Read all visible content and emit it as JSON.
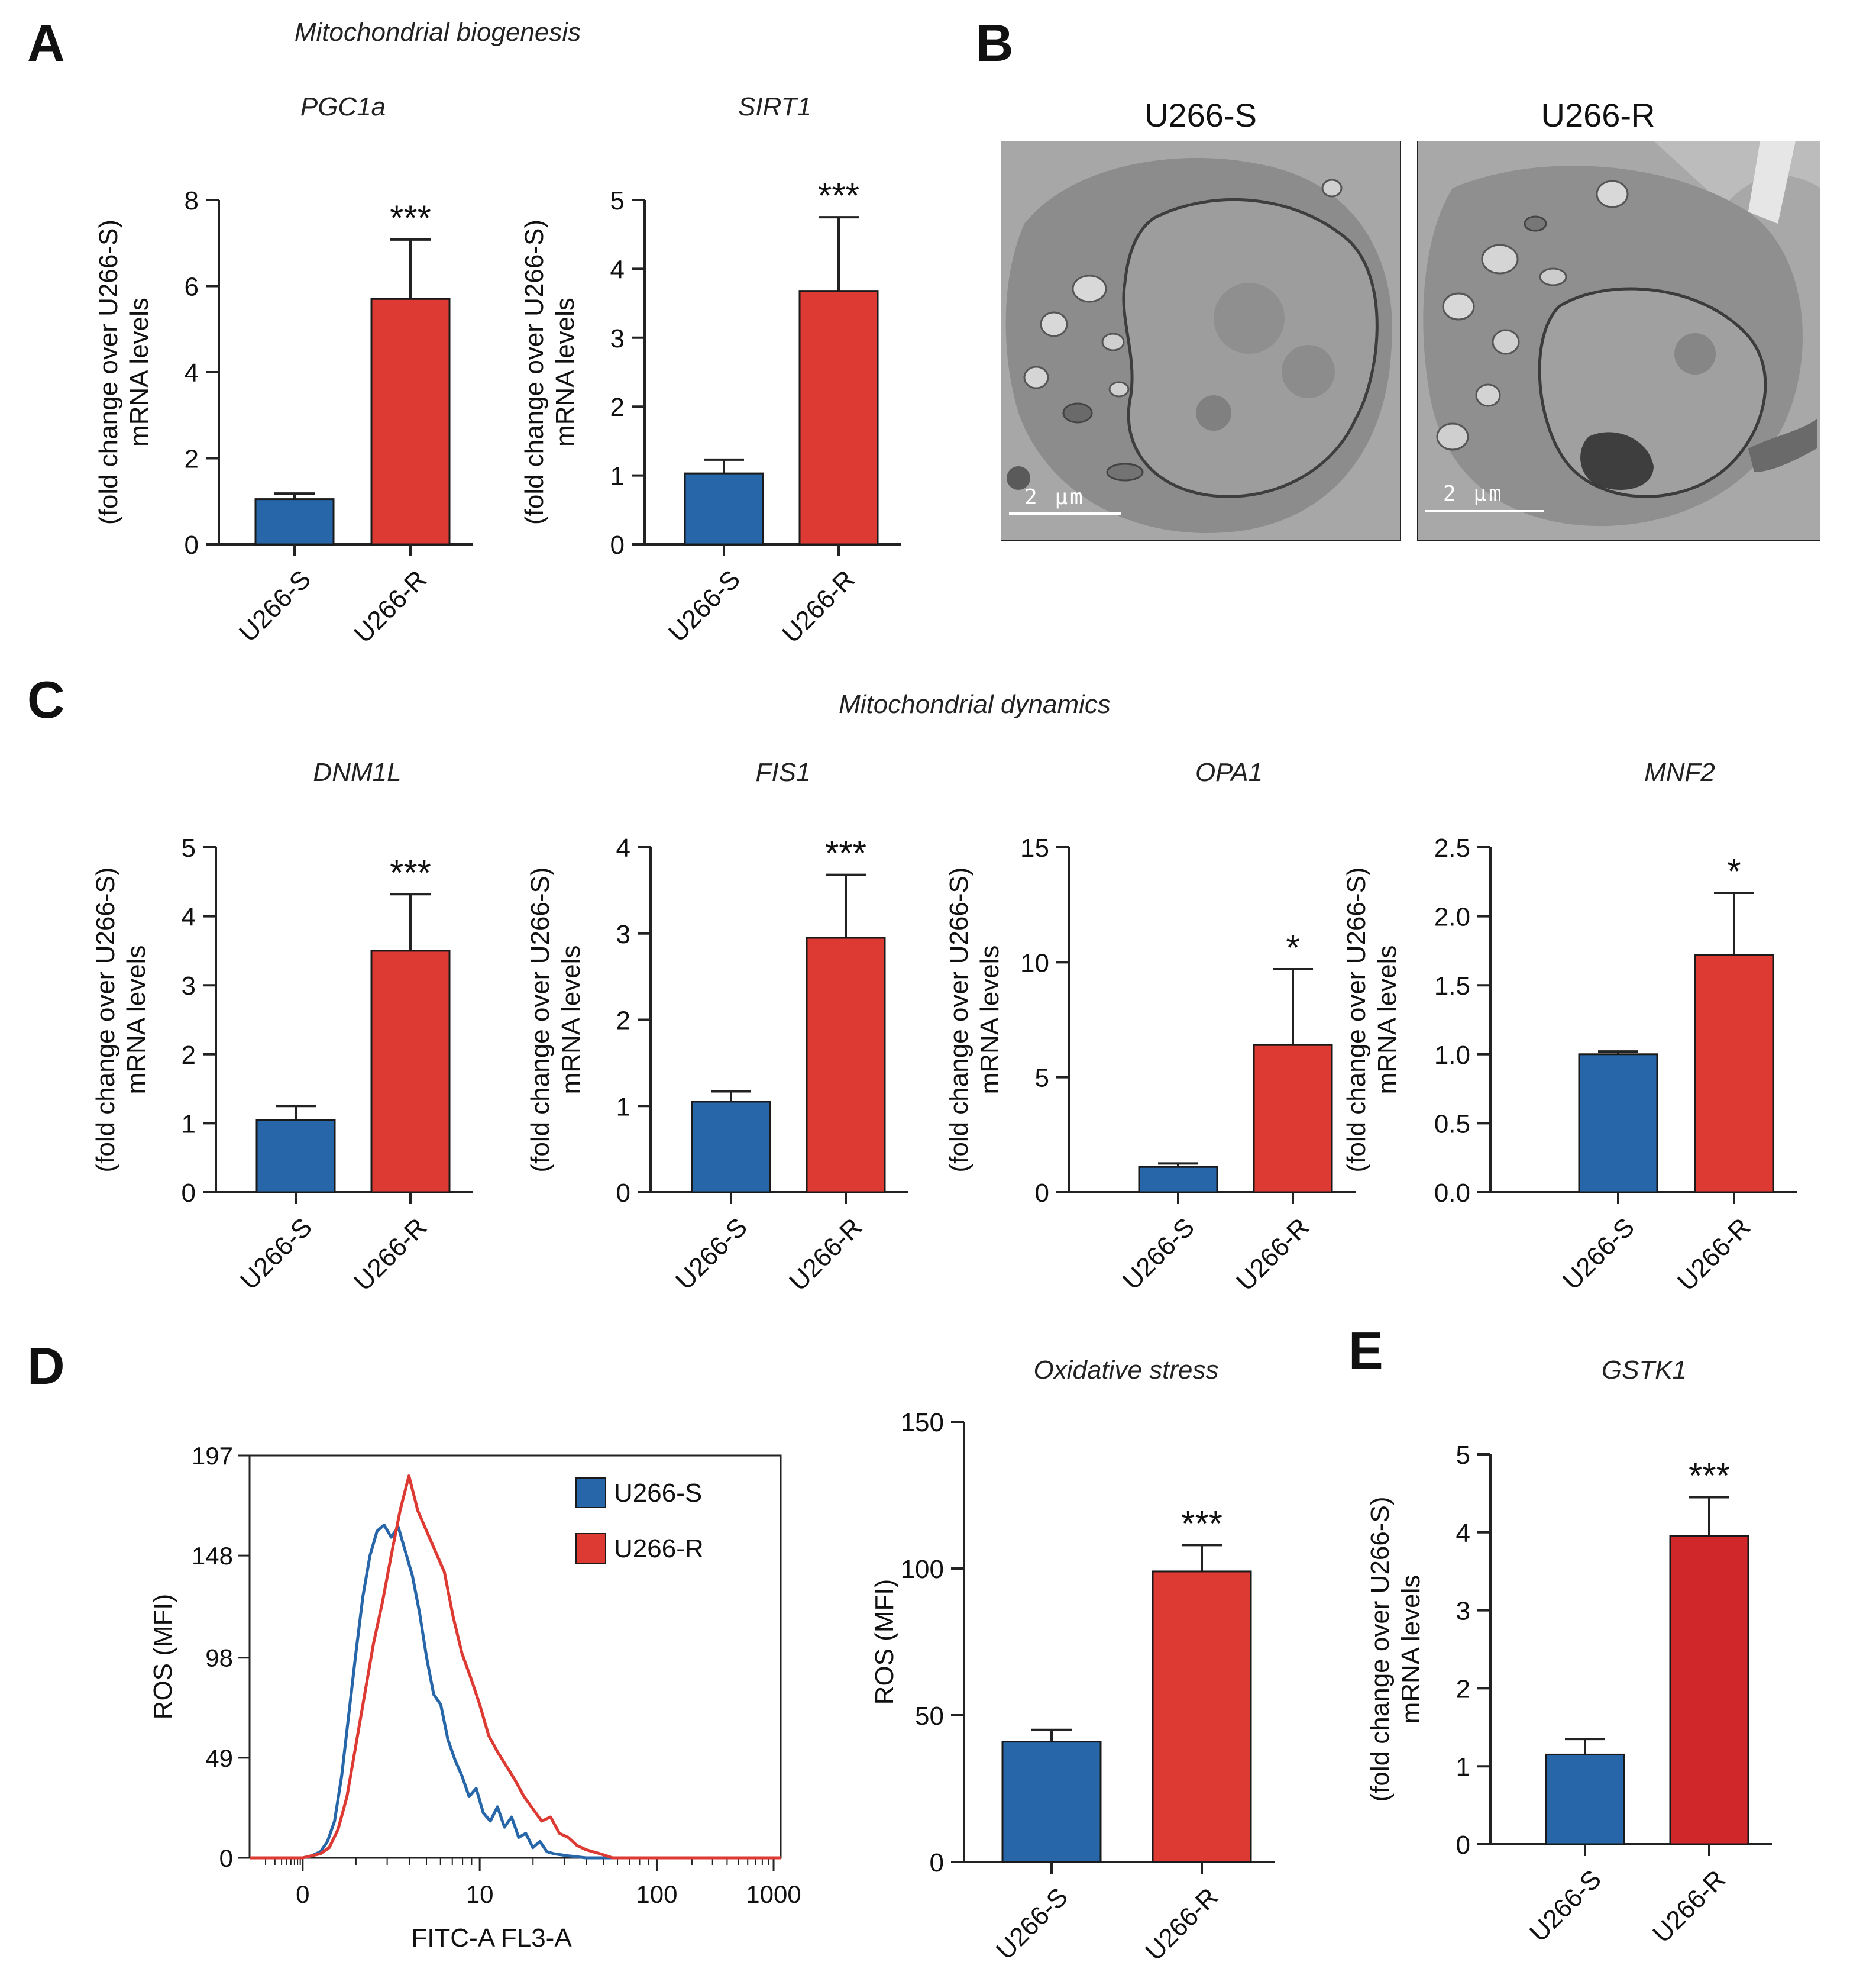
{
  "panels": {
    "A": {
      "letter": "A",
      "title": "Mitochondrial biogenesis"
    },
    "B": {
      "letter": "B",
      "images": [
        {
          "label": "U266-S",
          "scale": "2  µm"
        },
        {
          "label": "U266-R",
          "scale": "2  µm"
        }
      ]
    },
    "C": {
      "letter": "C",
      "title": "Mitochondrial dynamics"
    },
    "D": {
      "letter": "D"
    },
    "E": {
      "letter": "E"
    }
  },
  "colors": {
    "s": "#2766a8",
    "r": "#dd3a33",
    "r_dark": "#d0272a",
    "axis": "#222222"
  },
  "chart_data": [
    {
      "id": "pgc1a",
      "type": "bar",
      "title": "PGC1a",
      "ylabel": [
        "mRNA levels",
        "(fold change over U266-S)"
      ],
      "categories": [
        "U266-S",
        "U266-R"
      ],
      "values": [
        1.05,
        5.7
      ],
      "errors": [
        0.13,
        1.38
      ],
      "ylim": [
        0,
        8
      ],
      "yticks": [
        "0",
        "2",
        "4",
        "6",
        "8"
      ],
      "yticks_num": [
        0,
        2,
        4,
        6,
        8
      ],
      "significance": "***"
    },
    {
      "id": "sirt1",
      "type": "bar",
      "title": "SIRT1",
      "ylabel": [
        "mRNA levels",
        "(fold change over U266-S)"
      ],
      "categories": [
        "U266-S",
        "U266-R"
      ],
      "values": [
        1.03,
        3.68
      ],
      "errors": [
        0.2,
        1.07
      ],
      "ylim": [
        0,
        5
      ],
      "yticks": [
        "0",
        "1",
        "2",
        "3",
        "4",
        "5"
      ],
      "yticks_num": [
        0,
        1,
        2,
        3,
        4,
        5
      ],
      "significance": "***"
    },
    {
      "id": "dnm1l",
      "type": "bar",
      "title": "DNM1L",
      "ylabel": [
        "mRNA levels",
        "(fold change over U266-S)"
      ],
      "categories": [
        "U266-S",
        "U266-R"
      ],
      "values": [
        1.05,
        3.5
      ],
      "errors": [
        0.2,
        0.82
      ],
      "ylim": [
        0,
        5
      ],
      "yticks": [
        "0",
        "1",
        "2",
        "3",
        "4",
        "5"
      ],
      "yticks_num": [
        0,
        1,
        2,
        3,
        4,
        5
      ],
      "significance": "***"
    },
    {
      "id": "fis1",
      "type": "bar",
      "title": "FIS1",
      "ylabel": [
        "mRNA levels",
        "(fold change over U266-S)"
      ],
      "categories": [
        "U266-S",
        "U266-R"
      ],
      "values": [
        1.05,
        2.95
      ],
      "errors": [
        0.12,
        0.73
      ],
      "ylim": [
        0,
        4
      ],
      "yticks": [
        "0",
        "1",
        "2",
        "3",
        "4"
      ],
      "yticks_num": [
        0,
        1,
        2,
        3,
        4
      ],
      "significance": "***"
    },
    {
      "id": "opa1",
      "type": "bar",
      "title": "OPA1",
      "ylabel": [
        "mRNA levels",
        "(fold change over U266-S)"
      ],
      "categories": [
        "U266-S",
        "U266-R"
      ],
      "values": [
        1.1,
        6.4
      ],
      "errors": [
        0.15,
        3.3
      ],
      "ylim": [
        0,
        15
      ],
      "yticks": [
        "0",
        "5",
        "10",
        "15"
      ],
      "yticks_num": [
        0,
        5,
        10,
        15
      ],
      "significance": "*"
    },
    {
      "id": "mnf2",
      "type": "bar",
      "title": "MNF2",
      "ylabel": [
        "mRNA levels",
        "(fold change over U266-S)"
      ],
      "categories": [
        "U266-S",
        "U266-R"
      ],
      "values": [
        1.0,
        1.72
      ],
      "errors": [
        0.02,
        0.45
      ],
      "ylim": [
        0,
        2.5
      ],
      "yticks": [
        "0.0",
        "0.5",
        "1.0",
        "1.5",
        "2.0",
        "2.5"
      ],
      "yticks_num": [
        0,
        0.5,
        1,
        1.5,
        2,
        2.5
      ],
      "significance": "*"
    },
    {
      "id": "ros_hist",
      "type": "line",
      "title": "",
      "xlabel": "FITC-A FL3-A",
      "ylabel": "ROS (MFI)",
      "yticks": [
        "0",
        "49",
        "98",
        "148",
        "197"
      ],
      "yticks_num": [
        0,
        49,
        98,
        148,
        197
      ],
      "ylim": [
        0,
        197
      ],
      "xticks": [
        "0",
        "10",
        "100",
        "1000"
      ],
      "legend": [
        "U266-S",
        "U266-R"
      ],
      "series": [
        {
          "name": "U266-S",
          "x": [
            -3,
            -1.5,
            0,
            0.5,
            1.0,
            1.4,
            1.8,
            2.2,
            2.6,
            3.0,
            3.4,
            3.8,
            4.2,
            4.6,
            5.0,
            5.4,
            5.8,
            6.2,
            6.6,
            7.0,
            7.4,
            7.8,
            8.2,
            8.6,
            9.0,
            9.4,
            9.8,
            10.2,
            10.6,
            11.0,
            11.4,
            11.8,
            12.2,
            12.6,
            13.0,
            13.4,
            13.8,
            14.2,
            15.0,
            16.0
          ],
          "y": [
            0,
            0,
            0,
            1,
            3,
            8,
            18,
            40,
            70,
            100,
            128,
            148,
            160,
            163,
            157,
            162,
            150,
            138,
            120,
            98,
            80,
            75,
            58,
            48,
            40,
            30,
            34,
            22,
            18,
            25,
            15,
            20,
            10,
            12,
            5,
            8,
            3,
            2,
            1,
            0
          ]
        },
        {
          "name": "U266-R",
          "x": [
            -3,
            -1.5,
            0,
            1.0,
            1.5,
            2.0,
            2.5,
            3.0,
            3.5,
            4.0,
            4.5,
            5.0,
            5.5,
            6.0,
            6.5,
            7.0,
            7.5,
            8.0,
            8.5,
            9.0,
            9.5,
            10.0,
            10.5,
            11.0,
            11.5,
            12.0,
            12.5,
            13.0,
            13.5,
            14.0,
            14.5,
            15.0,
            15.5,
            16.0,
            16.8,
            17.5
          ],
          "y": [
            0,
            0,
            0,
            2,
            5,
            14,
            30,
            55,
            80,
            105,
            125,
            148,
            170,
            187,
            170,
            160,
            150,
            140,
            118,
            100,
            88,
            75,
            60,
            52,
            45,
            38,
            30,
            24,
            18,
            20,
            12,
            10,
            6,
            4,
            2,
            0
          ]
        }
      ]
    },
    {
      "id": "ros_bar",
      "type": "bar",
      "title": "Oxidative stress",
      "ylabel": [
        "ROS (MFI)"
      ],
      "categories": [
        "U266-S",
        "U266-R"
      ],
      "values": [
        41,
        99
      ],
      "errors": [
        4,
        9
      ],
      "ylim": [
        0,
        150
      ],
      "yticks": [
        "0",
        "50",
        "100",
        "150"
      ],
      "yticks_num": [
        0,
        50,
        100,
        150
      ],
      "significance": "***"
    },
    {
      "id": "gstk1",
      "type": "bar",
      "title": "GSTK1",
      "ylabel": [
        "mRNA levels",
        "(fold change over U266-S)"
      ],
      "categories": [
        "U266-S",
        "U266-R"
      ],
      "values": [
        1.15,
        3.95
      ],
      "errors": [
        0.2,
        0.5
      ],
      "ylim": [
        0,
        5
      ],
      "yticks": [
        "0",
        "1",
        "2",
        "3",
        "4",
        "5"
      ],
      "yticks_num": [
        0,
        1,
        2,
        3,
        4,
        5
      ],
      "significance": "***",
      "dark_red": true
    }
  ]
}
